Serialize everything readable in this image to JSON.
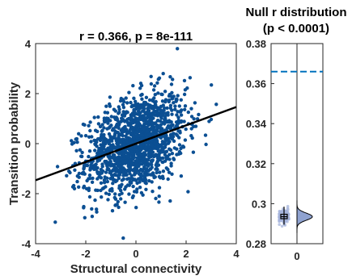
{
  "chart_data": [
    {
      "type": "scatter",
      "title": "r = 0.366, p = 8e-111",
      "xlabel": "Structural connectivity",
      "ylabel": "Transition probability",
      "xlim": [
        -4,
        4
      ],
      "ylim": [
        -4,
        4
      ],
      "xticks": [
        "-4",
        "-2",
        "0",
        "2",
        "4"
      ],
      "yticks": [
        "-4",
        "-2",
        "0",
        "2",
        "4"
      ],
      "grid": false,
      "point_color": "#0b4f93",
      "point_count_approx": 1500,
      "point_distribution": {
        "x_mean": 0,
        "x_sd": 1,
        "y_mean": 0,
        "y_sd": 1,
        "correlation": 0.366
      },
      "fit_line": {
        "color": "#000000",
        "x": [
          -4,
          4
        ],
        "y": [
          -1.464,
          1.464
        ]
      }
    },
    {
      "type": "violin",
      "title": "Null r distribution",
      "subtitle": "(p < 0.0001)",
      "xticks": [
        "0"
      ],
      "ylim": [
        0.28,
        0.38
      ],
      "yticks": [
        "0.28",
        "0.3",
        "0.32",
        "0.34",
        "0.36",
        "0.38"
      ],
      "observed_r": 0.366,
      "observed_line_color": "#0072bd",
      "null_distribution": {
        "mean": 0.2935,
        "sd": 0.0018,
        "min": 0.2875,
        "max": 0.2995
      },
      "box": {
        "q1": 0.2925,
        "median": 0.2935,
        "q3": 0.2947,
        "whisker_low": 0.2895,
        "whisker_high": 0.2985
      },
      "density_fill": "#8fa2d0",
      "jitter_color": "#a6b4dc"
    }
  ]
}
